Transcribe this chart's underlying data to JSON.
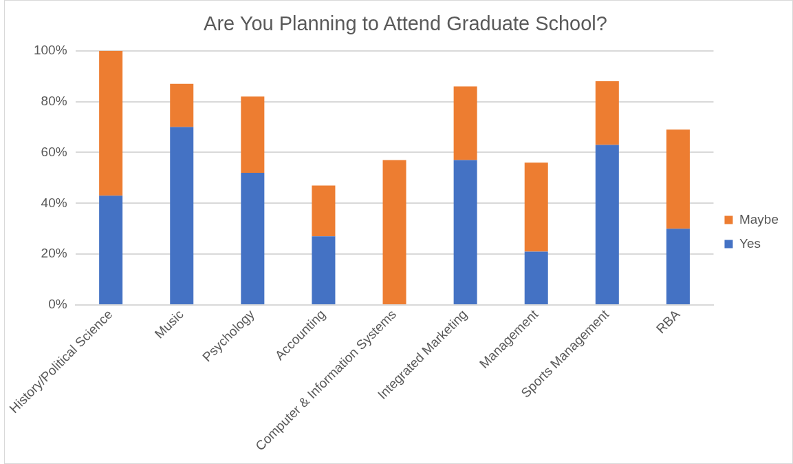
{
  "chart_data": {
    "type": "bar",
    "title": "Are You Planning to Attend Graduate School?",
    "stacked": true,
    "categories": [
      "History/Political Science",
      "Music",
      "Psychology",
      "Accounting",
      "Computer & Information Systems",
      "Integrated Marketing",
      "Management",
      "Sports Management",
      "RBA"
    ],
    "series": [
      {
        "name": "Yes",
        "color": "#4472c4",
        "values": [
          43,
          70,
          52,
          27,
          0,
          57,
          21,
          63,
          30
        ]
      },
      {
        "name": "Maybe",
        "color": "#ed7d31",
        "values": [
          57,
          17,
          30,
          20,
          57,
          29,
          35,
          25,
          39
        ]
      }
    ],
    "ylim": [
      0,
      100
    ],
    "yticks": [
      {
        "value": 0,
        "label": "0%"
      },
      {
        "value": 20,
        "label": "20%"
      },
      {
        "value": 40,
        "label": "40%"
      },
      {
        "value": 60,
        "label": "60%"
      },
      {
        "value": 80,
        "label": "80%"
      },
      {
        "value": 100,
        "label": "100%"
      }
    ],
    "grid": "y",
    "legend": "right"
  }
}
